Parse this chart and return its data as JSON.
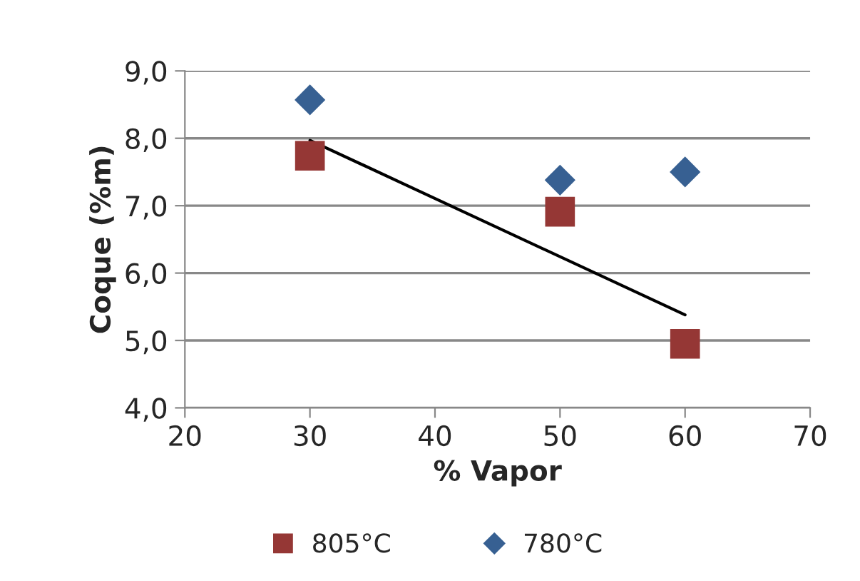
{
  "chart_data": {
    "type": "scatter",
    "xlabel": "% Vapor",
    "ylabel": "Coque (%m)",
    "x": [
      30,
      50,
      60
    ],
    "series": [
      {
        "name": "805°C",
        "color": "#953735",
        "marker": "square",
        "values": [
          7.74,
          6.91,
          4.95
        ]
      },
      {
        "name": "780°C",
        "color": "#376092",
        "marker": "diamond",
        "values": [
          8.57,
          7.38,
          7.5
        ]
      },
      {
        "type": "line",
        "color": "#000000",
        "marker": "none",
        "line_style": "solid",
        "x": [
          30,
          60
        ],
        "values": [
          7.97,
          5.38
        ]
      }
    ],
    "xlim": [
      20,
      70
    ],
    "xticks": [
      20,
      30,
      40,
      50,
      60,
      70
    ],
    "ylim": [
      4,
      9
    ],
    "yticks": [
      {
        "value": 4,
        "label": "4,0"
      },
      {
        "value": 5,
        "label": "5,0"
      },
      {
        "value": 6,
        "label": "6,0"
      },
      {
        "value": 7,
        "label": "7,0"
      },
      {
        "value": 8,
        "label": "8,0"
      },
      {
        "value": 9,
        "label": "9,0"
      }
    ],
    "grid": "y",
    "legend": "bottom"
  }
}
